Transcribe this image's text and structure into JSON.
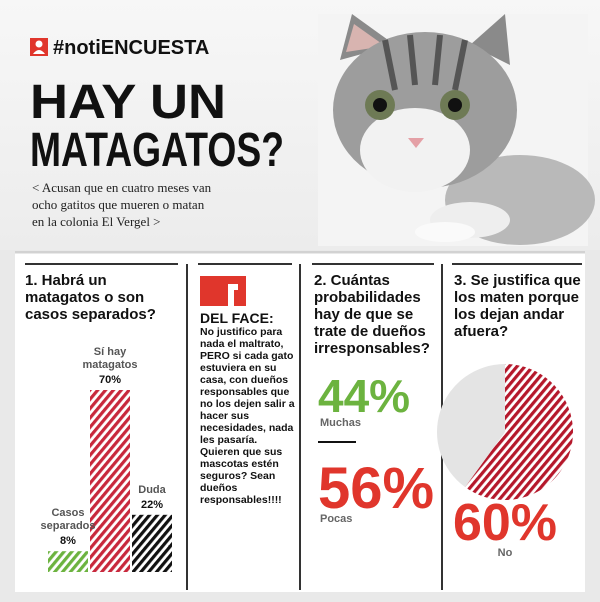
{
  "header": {
    "hashtag": "#notiENCUESTA",
    "title_lines": [
      "HAY UN",
      "MATAGATOS?"
    ],
    "subtitle_lines": [
      "< Acusan que en cuatro meses van",
      "ocho gatitos que mueren o matan",
      "en la colonia El Vergel >"
    ]
  },
  "del_face": {
    "title": "DEL FACE:",
    "text": "No justifico para nada el maltrato, PERO si cada gato estuviera en su casa, con dueños responsables que no los dejen salir a hacer sus necesidades, nada les pasaría. Quieren que sus mascotas estén seguros? Sean dueños responsables!!!!"
  },
  "chart_data": [
    {
      "type": "bar",
      "title": "1. Habrá un matagatos o son casos separados?",
      "categories": [
        "Casos separados",
        "Sí hay matagatos",
        "Duda"
      ],
      "values": [
        8,
        70,
        22
      ],
      "value_labels": [
        "8%",
        "70%",
        "22%"
      ],
      "colors": [
        "#6cb33f",
        "#c8283c",
        "#111111"
      ]
    },
    {
      "type": "big-number",
      "title": "2. Cuántas probabilidades hay de que se trate de dueños irresponsables?",
      "categories": [
        "Muchas",
        "Pocas"
      ],
      "values": [
        44,
        56
      ],
      "value_labels": [
        "44%",
        "56%"
      ],
      "colors": [
        "#6cb33f",
        "#e0362c"
      ]
    },
    {
      "type": "pie",
      "title": "3. Se justifica que los maten porque los dejan andar afuera?",
      "categories": [
        "No",
        null
      ],
      "values": [
        60,
        40
      ],
      "value_labels": [
        "60%",
        null
      ],
      "colors": [
        "#b5182b",
        "#e4e4e4"
      ]
    }
  ]
}
